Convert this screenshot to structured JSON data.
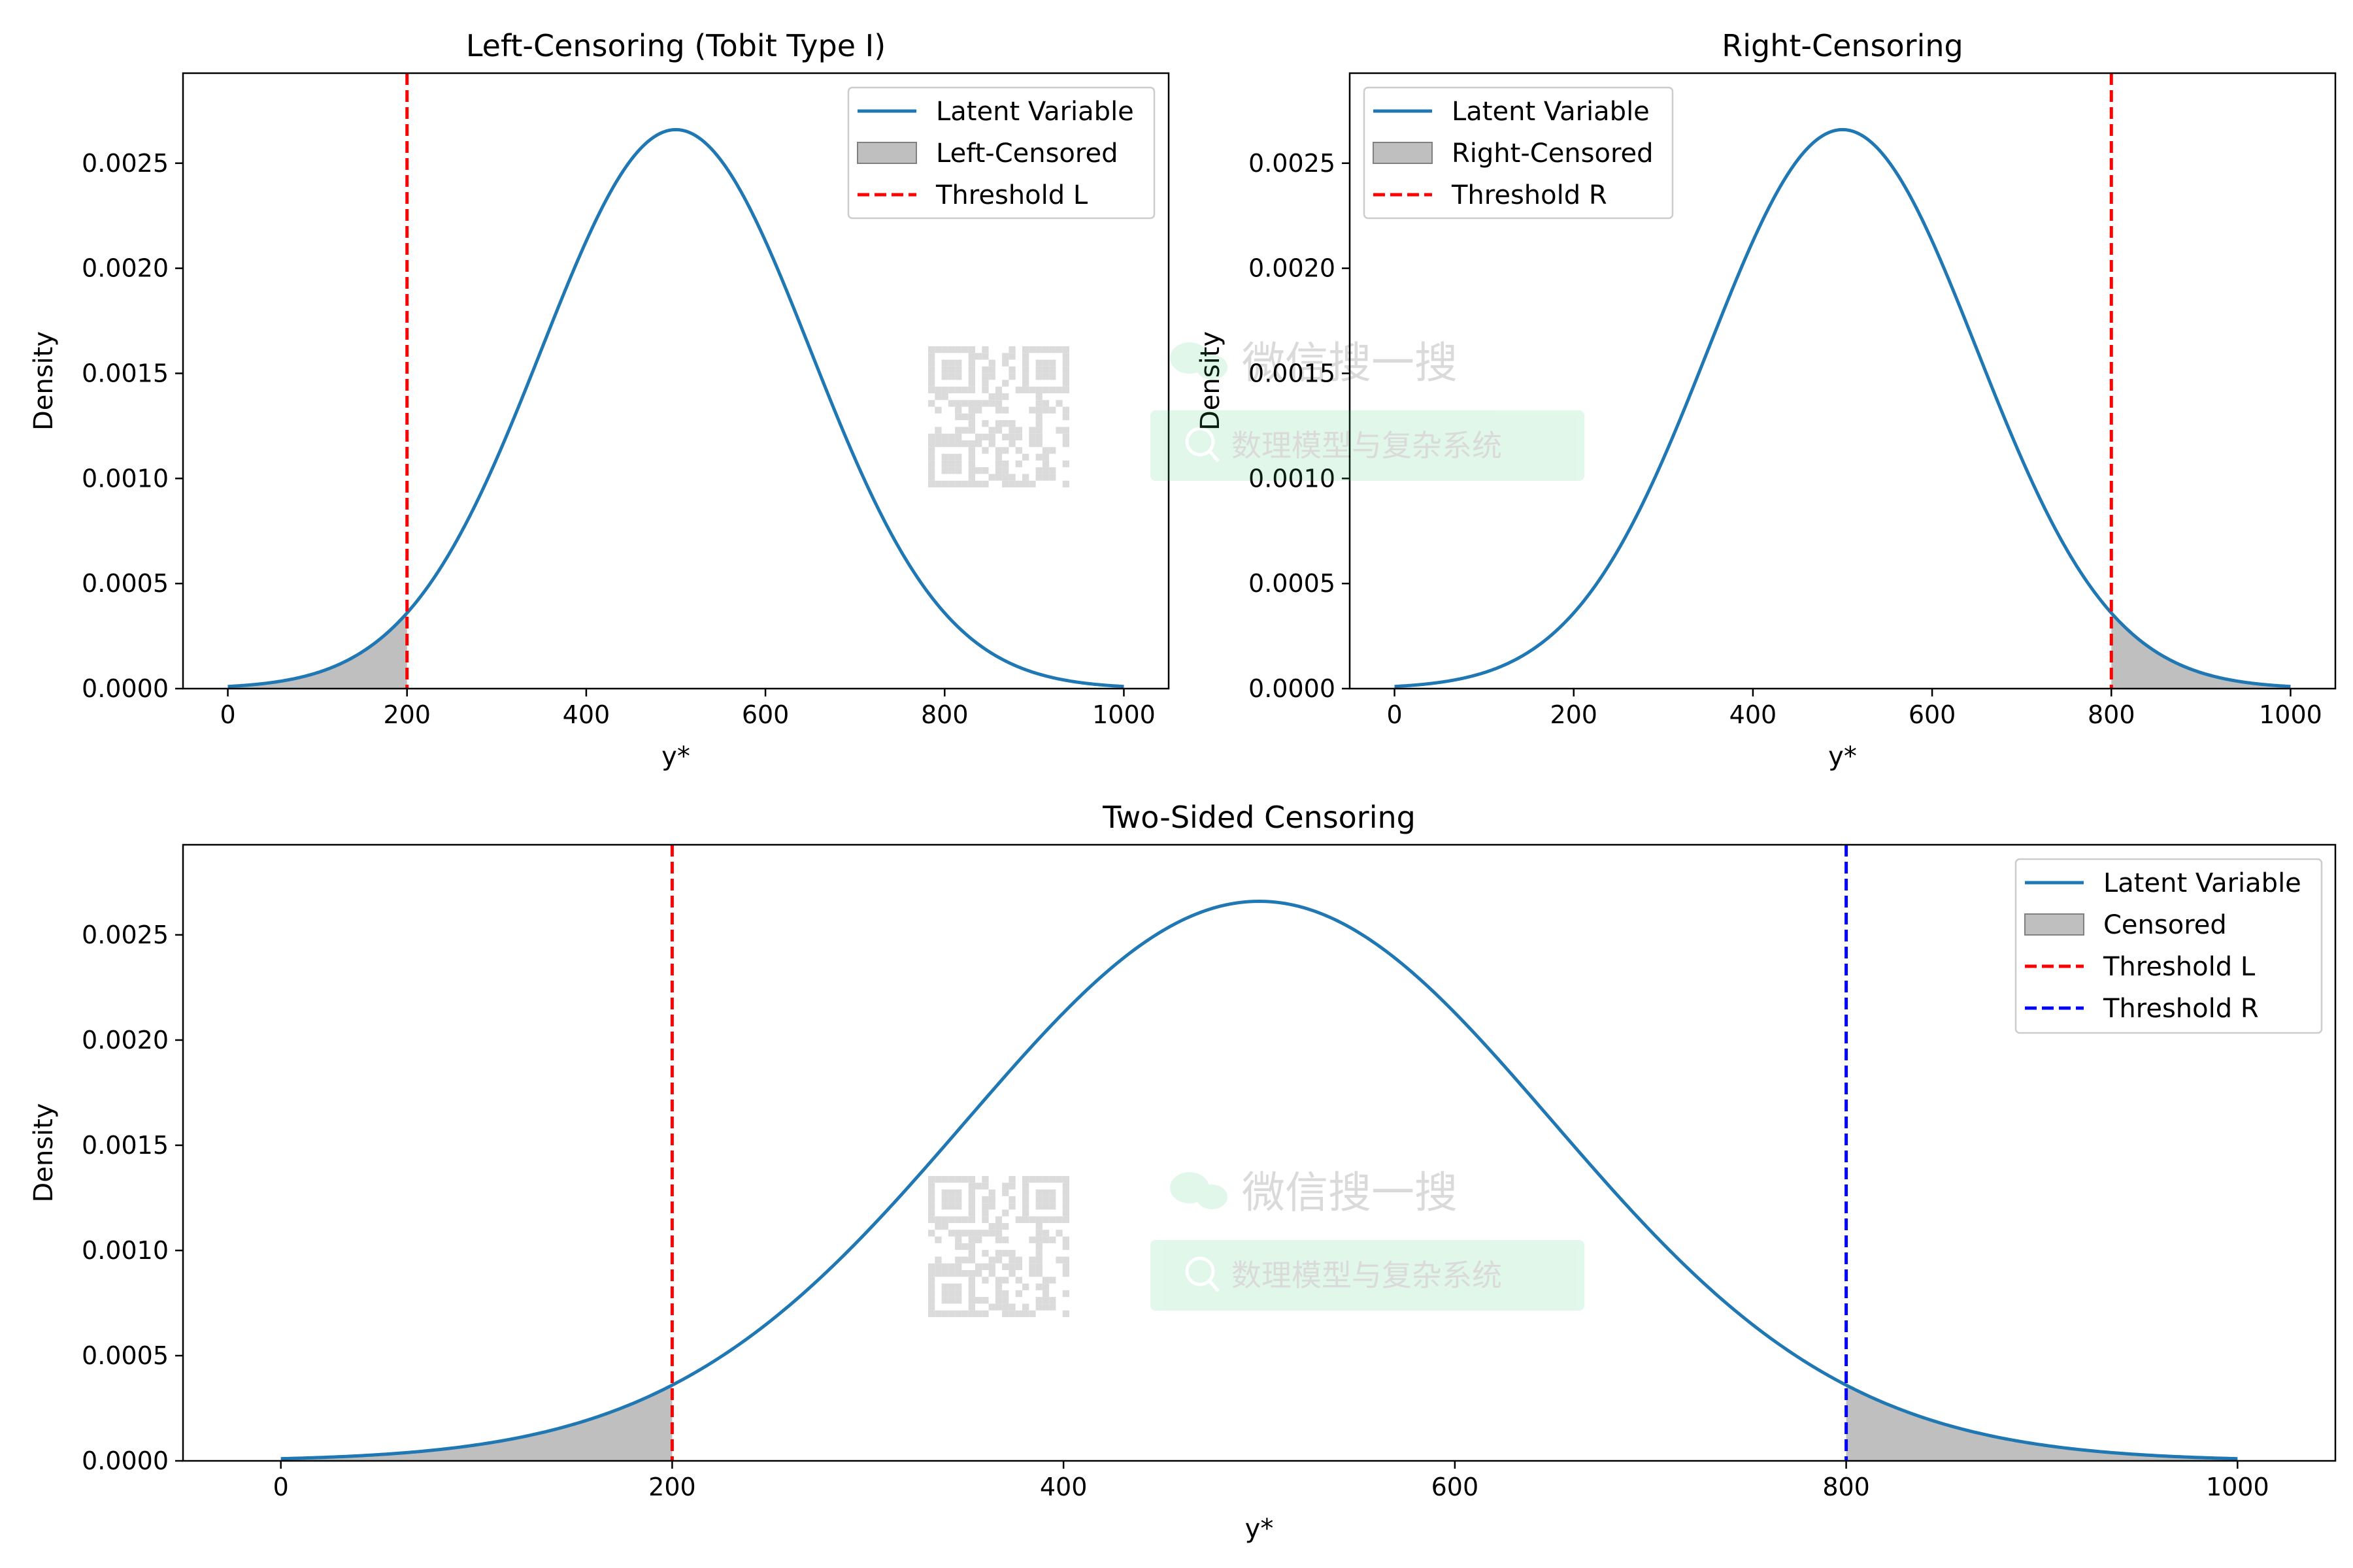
{
  "colors": {
    "latent": "#1f77b4",
    "censored_fill": "#bfbfbf",
    "censored_edge": "#808080",
    "threshold_left": "#ff0000",
    "threshold_right": "#0000ff",
    "watermark": "#2ecc71"
  },
  "watermark": {
    "qr_icon": "qr-code-icon",
    "logo_icon": "wechat-logo-icon",
    "search_icon": "search-icon",
    "brand": "微信搜一搜",
    "account": "数理模型与复杂系统"
  },
  "chart_data": [
    {
      "type": "line",
      "title": "Left-Censoring (Tobit Type I)",
      "xlabel": "y*",
      "ylabel": "Density",
      "xlim": [
        -50,
        1050
      ],
      "ylim": [
        0,
        0.0029283
      ],
      "xticks": [
        0,
        200,
        400,
        600,
        800,
        1000
      ],
      "xtick_labels": [
        "0",
        "200",
        "400",
        "600",
        "800",
        "1000"
      ],
      "yticks": [
        0,
        0.0005,
        0.001,
        0.0015,
        0.002,
        0.0025
      ],
      "ytick_labels": [
        "0.0000",
        "0.0005",
        "0.0010",
        "0.0015",
        "0.0020",
        "0.0025"
      ],
      "grid": false,
      "legend_position": "upper right",
      "distribution": {
        "name": "normal",
        "mean": 500,
        "sd": 150,
        "x_range": [
          0,
          1000
        ]
      },
      "series": [
        {
          "name": "Latent Variable",
          "kind": "line",
          "color": "#1f77b4"
        },
        {
          "name": "Left-Censored",
          "kind": "fill",
          "from": 0,
          "to": 200,
          "color": "#bfbfbf"
        },
        {
          "name": "Threshold L",
          "kind": "vline",
          "x": 200,
          "color": "#ff0000"
        }
      ]
    },
    {
      "type": "line",
      "title": "Right-Censoring",
      "xlabel": "y*",
      "ylabel": "Density",
      "xlim": [
        -50,
        1050
      ],
      "ylim": [
        0,
        0.0029283
      ],
      "xticks": [
        0,
        200,
        400,
        600,
        800,
        1000
      ],
      "xtick_labels": [
        "0",
        "200",
        "400",
        "600",
        "800",
        "1000"
      ],
      "yticks": [
        0,
        0.0005,
        0.001,
        0.0015,
        0.002,
        0.0025
      ],
      "ytick_labels": [
        "0.0000",
        "0.0005",
        "0.0010",
        "0.0015",
        "0.0020",
        "0.0025"
      ],
      "grid": false,
      "legend_position": "upper left",
      "distribution": {
        "name": "normal",
        "mean": 500,
        "sd": 150,
        "x_range": [
          0,
          1000
        ]
      },
      "series": [
        {
          "name": "Latent Variable",
          "kind": "line",
          "color": "#1f77b4"
        },
        {
          "name": "Right-Censored",
          "kind": "fill",
          "from": 800,
          "to": 1000,
          "color": "#bfbfbf"
        },
        {
          "name": "Threshold R",
          "kind": "vline",
          "x": 800,
          "color": "#ff0000"
        }
      ]
    },
    {
      "type": "line",
      "title": "Two-Sided Censoring",
      "xlabel": "y*",
      "ylabel": "Density",
      "xlim": [
        -50,
        1050
      ],
      "ylim": [
        0,
        0.0029283
      ],
      "xticks": [
        0,
        200,
        400,
        600,
        800,
        1000
      ],
      "xtick_labels": [
        "0",
        "200",
        "400",
        "600",
        "800",
        "1000"
      ],
      "yticks": [
        0,
        0.0005,
        0.001,
        0.0015,
        0.002,
        0.0025
      ],
      "ytick_labels": [
        "0.0000",
        "0.0005",
        "0.0010",
        "0.0015",
        "0.0020",
        "0.0025"
      ],
      "grid": false,
      "legend_position": "upper right",
      "distribution": {
        "name": "normal",
        "mean": 500,
        "sd": 150,
        "x_range": [
          0,
          1000
        ]
      },
      "series": [
        {
          "name": "Latent Variable",
          "kind": "line",
          "color": "#1f77b4"
        },
        {
          "name": "Censored",
          "kind": "fill",
          "ranges": [
            [
              0,
              200
            ],
            [
              800,
              1000
            ]
          ],
          "color": "#bfbfbf"
        },
        {
          "name": "Threshold L",
          "kind": "vline",
          "x": 200,
          "color": "#ff0000"
        },
        {
          "name": "Threshold R",
          "kind": "vline",
          "x": 800,
          "color": "#0000ff"
        }
      ]
    }
  ]
}
